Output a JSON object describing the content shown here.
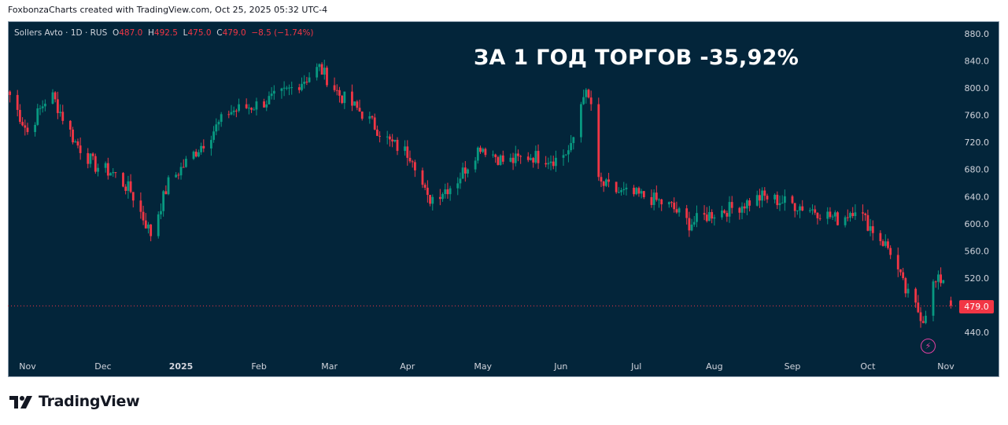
{
  "caption": "FoxbonzaCharts created with TradingView.com, Oct 25, 2025 05:32 UTC-4",
  "legend": {
    "symbol": "Sollers Avto · 1D · RUS",
    "o_label": "O",
    "o_value": "487.0",
    "h_label": "H",
    "h_value": "492.5",
    "l_label": "L",
    "l_value": "475.0",
    "c_label": "C",
    "c_value": "479.0",
    "change": "−8.5 (−1.74%)"
  },
  "headline": "ЗА 1 ГОД ТОРГОВ -35,92%",
  "last_price_label": "479.0",
  "logo_text": "TradingView",
  "colors": {
    "background": "#03253a",
    "up": "#089981",
    "down": "#f23645",
    "axis_text": "#d1d4dc"
  },
  "icons": {
    "alert": "lightning-icon"
  },
  "chart_data": {
    "type": "candlestick",
    "symbol": "Sollers Avto",
    "interval": "1D",
    "x_ticks": [
      "Nov",
      "Dec",
      "2025",
      "Feb",
      "Mar",
      "Apr",
      "May",
      "Jun",
      "Jul",
      "Aug",
      "Sep",
      "Oct",
      "Nov"
    ],
    "y_ticks": [
      880.0,
      840.0,
      800.0,
      760.0,
      720.0,
      680.0,
      640.0,
      600.0,
      560.0,
      520.0,
      440.0
    ],
    "ylim": [
      410,
      900
    ],
    "last_price": 479.0,
    "last_ohlc": {
      "open": 487.0,
      "high": 492.5,
      "low": 475.0,
      "close": 479.0
    },
    "close_path_approx": [
      [
        "2024-10-25",
        790
      ],
      [
        "2024-11-01",
        735
      ],
      [
        "2024-11-10",
        795
      ],
      [
        "2024-11-20",
        720
      ],
      [
        "2024-11-28",
        685
      ],
      [
        "2024-12-05",
        675
      ],
      [
        "2024-12-12",
        648
      ],
      [
        "2024-12-20",
        585
      ],
      [
        "2024-12-27",
        660
      ],
      [
        "2025-01-10",
        720
      ],
      [
        "2025-01-20",
        765
      ],
      [
        "2025-01-31",
        775
      ],
      [
        "2025-02-10",
        790
      ],
      [
        "2025-02-20",
        815
      ],
      [
        "2025-02-25",
        830
      ],
      [
        "2025-03-05",
        790
      ],
      [
        "2025-03-15",
        760
      ],
      [
        "2025-03-25",
        720
      ],
      [
        "2025-04-03",
        700
      ],
      [
        "2025-04-09",
        635
      ],
      [
        "2025-04-20",
        660
      ],
      [
        "2025-04-30",
        715
      ],
      [
        "2025-05-10",
        690
      ],
      [
        "2025-05-20",
        700
      ],
      [
        "2025-05-30",
        695
      ],
      [
        "2025-06-05",
        710
      ],
      [
        "2025-06-10",
        795
      ],
      [
        "2025-06-14",
        770
      ],
      [
        "2025-06-16",
        660
      ],
      [
        "2025-06-25",
        645
      ],
      [
        "2025-07-05",
        640
      ],
      [
        "2025-07-15",
        625
      ],
      [
        "2025-07-22",
        600
      ],
      [
        "2025-07-31",
        615
      ],
      [
        "2025-08-10",
        625
      ],
      [
        "2025-08-20",
        640
      ],
      [
        "2025-08-31",
        630
      ],
      [
        "2025-09-10",
        620
      ],
      [
        "2025-09-20",
        605
      ],
      [
        "2025-09-26",
        625
      ],
      [
        "2025-10-01",
        600
      ],
      [
        "2025-10-10",
        560
      ],
      [
        "2025-10-16",
        500
      ],
      [
        "2025-10-23",
        460
      ],
      [
        "2025-10-27",
        510
      ],
      [
        "2025-10-31",
        520
      ],
      [
        "2025-11-03",
        479
      ]
    ]
  }
}
